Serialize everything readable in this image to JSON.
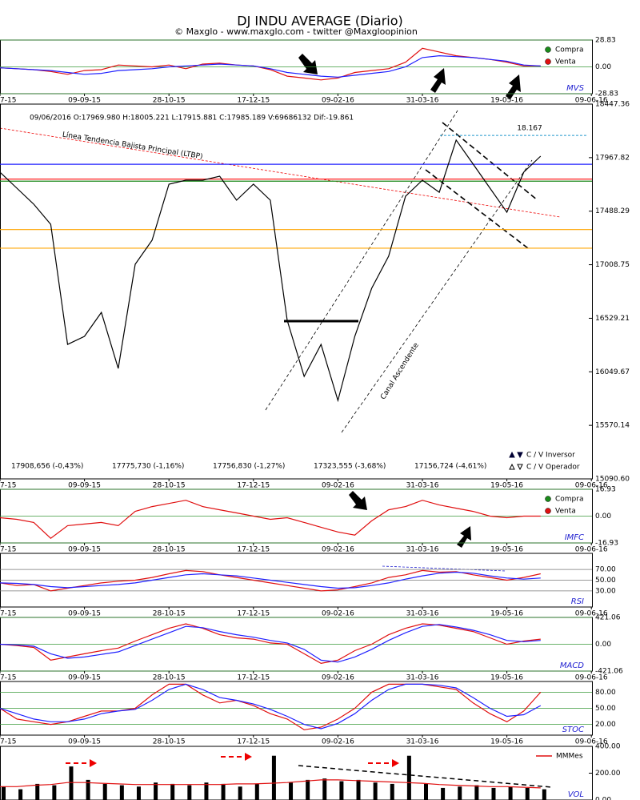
{
  "title": "DJ INDU AVERAGE (Diario)",
  "subtitle": "© Maxglo - www.maxglo.com - twitter @Maxgloopinion",
  "chart_data": [
    {
      "type": "line",
      "label": "MVS",
      "categories": [
        "7-15",
        null,
        null,
        null,
        null,
        "09-09-15",
        null,
        null,
        null,
        null,
        "28-10-15",
        null,
        null,
        null,
        null,
        "17-12-15",
        null,
        null,
        null,
        null,
        "09-02-16",
        null,
        null,
        null,
        null,
        "31-03-16",
        null,
        null,
        null,
        null,
        "19-05-16",
        null,
        null,
        null,
        null,
        "09-06-16"
      ],
      "ylim": [
        -28.83,
        28.83
      ],
      "yticks": [
        -28.83,
        {
          "value": 0,
          "label": "0.00"
        },
        28.83
      ],
      "grid": true,
      "grid_color": "#3a9a3a",
      "legend": [
        {
          "name": "Compra",
          "color": "#1a8a1a"
        },
        {
          "name": "Venta",
          "color": "#e01010"
        }
      ],
      "series": [
        {
          "color": "#e01010",
          "values": [
            -1,
            -2,
            -3,
            -5,
            -8,
            -4,
            -3,
            2,
            1,
            0,
            2,
            -2,
            3,
            4,
            2,
            1,
            -3,
            -10,
            -12,
            -14,
            -12,
            -6,
            -4,
            -2,
            5,
            20,
            16,
            12,
            10,
            8,
            5,
            1,
            1,
            null,
            null,
            null
          ]
        },
        {
          "color": "#2020ff",
          "values": [
            -1,
            -2,
            -3,
            -4,
            -6,
            -8,
            -7,
            -4,
            -3,
            -2,
            0,
            1,
            2,
            3,
            2,
            1,
            -2,
            -6,
            -8,
            -10,
            -11,
            -9,
            -7,
            -5,
            0,
            10,
            12,
            11,
            10,
            8,
            6,
            2,
            1,
            null,
            null,
            null
          ]
        }
      ]
    },
    {
      "type": "line",
      "header": "09/06/2016  O:17969.980  H:18005.221  L:17915.881  C:17985.189  V:69686132  Dif:-19.861",
      "annotations": [
        "Línea Tendencia Bajista Principal (LTBP)",
        "Canal Ascendente"
      ],
      "categories": [
        "7-15",
        null,
        null,
        null,
        null,
        "09-09-15",
        null,
        null,
        null,
        null,
        "28-10-15",
        null,
        null,
        null,
        null,
        "17-12-15",
        null,
        null,
        null,
        null,
        "09-02-16",
        null,
        null,
        null,
        null,
        "31-03-16",
        null,
        null,
        null,
        null,
        "19-05-16",
        null,
        null,
        null,
        null,
        "09-06-16"
      ],
      "ylim": [
        15090.6,
        18447.36
      ],
      "yticks": [
        {
          "value": 15090.6,
          "label": "15090.60"
        },
        15570.14,
        16049.67,
        16529.21,
        17008.75,
        17488.29,
        17967.82,
        18447.36
      ],
      "grid": false,
      "levels": [
        {
          "value": 17908.656,
          "label": "17908,656 (-0,43%)",
          "color": "#2020ff"
        },
        {
          "value": 17775.73,
          "label": "17775,730 (-1,16%)",
          "color": "#ff2020"
        },
        {
          "value": 17756.83,
          "label": "17756,830 (-1,27%)",
          "color": "#1a8a1a"
        },
        {
          "value": 17323.555,
          "label": "17323,555 (-3,68%)",
          "color": "#ffa500"
        },
        {
          "value": 17156.724,
          "label": "17156,724 (-4,61%)",
          "color": "#ffa500"
        }
      ],
      "target": {
        "value": 18167,
        "label": "18.167",
        "color": "#2299cc"
      },
      "legend": [
        {
          "name": "C / V Inversor",
          "color": "#000033",
          "marker": "filled"
        },
        {
          "name": "C / V Operador",
          "color": "#000",
          "marker": "hollow"
        }
      ],
      "series": [
        {
          "color": "#000",
          "values": [
            17838,
            17694,
            17551,
            17371,
            16295,
            16367,
            16582,
            16080,
            17013,
            17228,
            17730,
            17766,
            17766,
            17802,
            17587,
            17730,
            17587,
            16511,
            16009,
            16295,
            15793,
            16367,
            16798,
            17085,
            17622,
            17766,
            17658,
            18125,
            17910,
            17694,
            17479,
            17838,
            17981,
            null,
            null,
            null
          ]
        }
      ]
    },
    {
      "type": "line",
      "label": "IMFC",
      "categories": [
        "7-15",
        null,
        null,
        null,
        null,
        "09-09-15",
        null,
        null,
        null,
        null,
        "28-10-15",
        null,
        null,
        null,
        null,
        "17-12-15",
        null,
        null,
        null,
        null,
        "09-02-16",
        null,
        null,
        null,
        null,
        "31-03-16",
        null,
        null,
        null,
        null,
        "19-05-16",
        null,
        null,
        null,
        null,
        "09-06-16"
      ],
      "ylim": [
        -16.93,
        16.93
      ],
      "yticks": [
        -16.93,
        {
          "value": 0,
          "label": "0.00"
        },
        16.93
      ],
      "grid": true,
      "grid_color": "#3a9a3a",
      "legend": [
        {
          "name": "Compra",
          "color": "#1a8a1a"
        },
        {
          "name": "Venta",
          "color": "#e01010"
        }
      ],
      "series": [
        {
          "color": "#e01010",
          "values": [
            -1,
            -2,
            -4,
            -14,
            -6,
            -5,
            -4,
            -6,
            3,
            6,
            8,
            10,
            6,
            4,
            2,
            0,
            -2,
            -1,
            -4,
            -7,
            -10,
            -12,
            -3,
            4,
            6,
            10,
            7,
            5,
            3,
            0,
            -1,
            0,
            0,
            null,
            null,
            null
          ]
        }
      ]
    },
    {
      "type": "line",
      "label": "RSI",
      "categories": [
        "7-15",
        null,
        null,
        null,
        null,
        "09-09-15",
        null,
        null,
        null,
        null,
        "28-10-15",
        null,
        null,
        null,
        null,
        "17-12-15",
        null,
        null,
        null,
        null,
        "09-02-16",
        null,
        null,
        null,
        null,
        "31-03-16",
        null,
        null,
        null,
        null,
        "19-05-16",
        null,
        null,
        null,
        null,
        "09-06-16"
      ],
      "ylim": [
        0,
        100
      ],
      "yticks": [
        {
          "value": 30,
          "label": "30.00"
        },
        {
          "value": 50,
          "label": "50.00"
        },
        {
          "value": 70,
          "label": "70.00"
        }
      ],
      "grid": true,
      "grid_color": "#777",
      "series": [
        {
          "color": "#e01010",
          "values": [
            45,
            40,
            42,
            30,
            35,
            40,
            45,
            48,
            50,
            55,
            62,
            68,
            66,
            60,
            55,
            50,
            45,
            40,
            35,
            30,
            32,
            38,
            45,
            55,
            60,
            68,
            65,
            66,
            60,
            55,
            50,
            55,
            62,
            null,
            null,
            null
          ]
        },
        {
          "color": "#2020ff",
          "values": [
            45,
            44,
            42,
            38,
            36,
            38,
            40,
            42,
            45,
            50,
            55,
            60,
            62,
            60,
            58,
            54,
            50,
            46,
            42,
            38,
            35,
            36,
            40,
            45,
            52,
            58,
            63,
            65,
            63,
            58,
            54,
            52,
            54,
            null,
            null,
            null
          ]
        }
      ]
    },
    {
      "type": "line",
      "label": "MACD",
      "categories": [
        "7-15",
        null,
        null,
        null,
        null,
        "09-09-15",
        null,
        null,
        null,
        null,
        "28-10-15",
        null,
        null,
        null,
        null,
        "17-12-15",
        null,
        null,
        null,
        null,
        "09-02-16",
        null,
        null,
        null,
        null,
        "31-03-16",
        null,
        null,
        null,
        null,
        "19-05-16",
        null,
        null,
        null,
        null,
        "09-06-16"
      ],
      "ylim": [
        -421.06,
        421.06
      ],
      "yticks": [
        -421.06,
        {
          "value": 0,
          "label": "0.00"
        },
        421.06
      ],
      "grid": true,
      "grid_color": "#3a9a3a",
      "series": [
        {
          "color": "#e01010",
          "values": [
            0,
            -20,
            -50,
            -250,
            -200,
            -150,
            -100,
            -60,
            50,
            150,
            250,
            320,
            250,
            150,
            100,
            80,
            20,
            0,
            -150,
            -300,
            -250,
            -100,
            0,
            150,
            250,
            320,
            300,
            250,
            200,
            100,
            0,
            50,
            80,
            null,
            null,
            null
          ]
        },
        {
          "color": "#2020ff",
          "values": [
            0,
            -10,
            -30,
            -150,
            -220,
            -200,
            -160,
            -120,
            -20,
            80,
            180,
            280,
            260,
            200,
            150,
            110,
            60,
            20,
            -80,
            -250,
            -280,
            -200,
            -80,
            60,
            180,
            280,
            310,
            270,
            220,
            150,
            60,
            40,
            60,
            null,
            null,
            null
          ]
        }
      ]
    },
    {
      "type": "line",
      "label": "STOC",
      "categories": [
        "7-15",
        null,
        null,
        null,
        null,
        "09-09-15",
        null,
        null,
        null,
        null,
        "28-10-15",
        null,
        null,
        null,
        null,
        "17-12-15",
        null,
        null,
        null,
        null,
        "09-02-16",
        null,
        null,
        null,
        null,
        "31-03-16",
        null,
        null,
        null,
        null,
        "19-05-16",
        null,
        null,
        null,
        null,
        "09-06-16"
      ],
      "ylim": [
        0,
        100
      ],
      "yticks": [
        {
          "value": 20,
          "label": "20.00"
        },
        {
          "value": 50,
          "label": "50.00"
        },
        {
          "value": 80,
          "label": "80.00"
        }
      ],
      "grid": true,
      "grid_color": "#3a9a3a",
      "series": [
        {
          "color": "#e01010",
          "values": [
            50,
            30,
            25,
            20,
            25,
            35,
            45,
            45,
            50,
            75,
            95,
            95,
            75,
            60,
            65,
            55,
            40,
            30,
            10,
            15,
            30,
            50,
            80,
            95,
            95,
            95,
            90,
            85,
            60,
            40,
            25,
            45,
            80,
            null,
            null,
            null
          ]
        },
        {
          "color": "#2020ff",
          "values": [
            50,
            40,
            30,
            25,
            25,
            30,
            40,
            45,
            48,
            65,
            85,
            95,
            85,
            70,
            65,
            58,
            48,
            35,
            20,
            12,
            22,
            40,
            65,
            85,
            95,
            95,
            93,
            88,
            70,
            50,
            35,
            38,
            55,
            null,
            null,
            null
          ]
        }
      ]
    },
    {
      "type": "bar",
      "label": "VOL",
      "ylim": [
        0,
        400
      ],
      "yticks": [
        {
          "value": 0,
          "label": "0.00"
        },
        {
          "value": 200,
          "label": "200.00"
        },
        {
          "value": 400,
          "label": "400.00"
        }
      ],
      "grid": false,
      "color": "#000",
      "values": [
        100,
        80,
        120,
        110,
        250,
        150,
        120,
        110,
        100,
        130,
        120,
        110,
        130,
        120,
        100,
        120,
        330,
        130,
        150,
        160,
        140,
        150,
        130,
        120,
        330,
        120,
        90,
        100,
        110,
        90,
        100,
        90,
        80
      ],
      "series": [
        {
          "name": "MMMes",
          "color": "#e01010",
          "values": [
            100,
            100,
            110,
            115,
            130,
            130,
            125,
            120,
            115,
            115,
            115,
            115,
            115,
            115,
            120,
            120,
            125,
            130,
            140,
            150,
            150,
            145,
            140,
            135,
            130,
            125,
            115,
            110,
            105,
            100,
            100,
            95,
            90
          ]
        }
      ]
    }
  ]
}
